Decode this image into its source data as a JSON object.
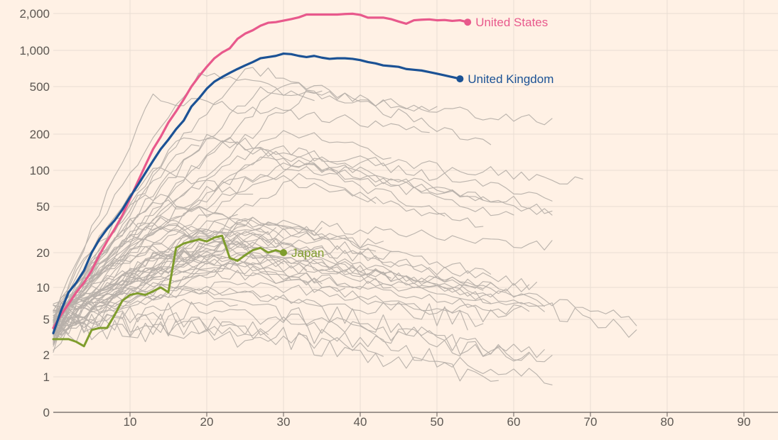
{
  "chart_data": {
    "type": "line",
    "y_scale": "log",
    "x_ticks": [
      10,
      20,
      30,
      40,
      50,
      60,
      70,
      80,
      90
    ],
    "y_ticks": [
      {
        "value": 2000,
        "label": "2,000"
      },
      {
        "value": 1000,
        "label": "1,000"
      },
      {
        "value": 500,
        "label": "500"
      },
      {
        "value": 200,
        "label": "200"
      },
      {
        "value": 100,
        "label": "100"
      },
      {
        "value": 50,
        "label": "50"
      },
      {
        "value": 20,
        "label": "20"
      },
      {
        "value": 10,
        "label": "10"
      },
      {
        "value": 5,
        "label": "5"
      },
      {
        "value": 2,
        "label": "2"
      },
      {
        "value": 1,
        "label": "1"
      },
      {
        "value": 0,
        "label": "0"
      }
    ],
    "xlim": [
      0,
      95
    ],
    "grid": "vertical and horizontal",
    "colors": {
      "background": "#fff1e5",
      "grid": "#e9ddd2",
      "axis": "#66605c",
      "tick_text": "#5c5752",
      "context": "#b7b0aa",
      "us": "#e8598c",
      "uk": "#1b5295",
      "japan": "#7f9d2d"
    },
    "highlighted": [
      {
        "name": "United States",
        "color": "#e8598c",
        "x": [
          0,
          1,
          2,
          3,
          4,
          5,
          6,
          7,
          8,
          9,
          10,
          11,
          12,
          13,
          14,
          15,
          16,
          17,
          18,
          19,
          20,
          21,
          22,
          23,
          24,
          25,
          26,
          27,
          28,
          29,
          30,
          31,
          32,
          33,
          34,
          35,
          36,
          37,
          38,
          39,
          40,
          41,
          42,
          43,
          44,
          45,
          46,
          47,
          48,
          49,
          50,
          51,
          52,
          53,
          54
        ],
        "y": [
          4,
          5.5,
          7,
          9,
          11,
          14,
          19,
          25,
          32,
          42,
          58,
          80,
          110,
          150,
          190,
          250,
          310,
          390,
          500,
          610,
          730,
          860,
          960,
          1040,
          1240,
          1370,
          1460,
          1590,
          1680,
          1700,
          1750,
          1800,
          1860,
          1960,
          1960,
          1960,
          1960,
          1960,
          1980,
          1990,
          1950,
          1850,
          1850,
          1850,
          1800,
          1720,
          1650,
          1760,
          1780,
          1790,
          1760,
          1770,
          1740,
          1760,
          1700
        ]
      },
      {
        "name": "United Kingdom",
        "color": "#1b5295",
        "x": [
          0,
          1,
          2,
          3,
          4,
          5,
          6,
          7,
          8,
          9,
          10,
          11,
          12,
          13,
          14,
          15,
          16,
          17,
          18,
          19,
          20,
          21,
          22,
          23,
          24,
          25,
          26,
          27,
          28,
          29,
          30,
          31,
          32,
          33,
          34,
          35,
          36,
          37,
          38,
          39,
          40,
          41,
          42,
          43,
          44,
          45,
          46,
          47,
          48,
          49,
          50,
          51,
          52,
          53
        ],
        "y": [
          3.5,
          6,
          9,
          11,
          14,
          20,
          26,
          32,
          38,
          47,
          60,
          75,
          95,
          120,
          150,
          180,
          220,
          260,
          340,
          400,
          480,
          550,
          600,
          650,
          700,
          750,
          800,
          860,
          880,
          900,
          940,
          930,
          900,
          880,
          900,
          870,
          850,
          860,
          860,
          850,
          830,
          800,
          780,
          750,
          740,
          730,
          700,
          690,
          680,
          660,
          640,
          620,
          600,
          580
        ]
      },
      {
        "name": "Japan",
        "color": "#7f9d2d",
        "x": [
          0,
          1,
          2,
          3,
          4,
          5,
          6,
          7,
          8,
          9,
          10,
          11,
          12,
          13,
          14,
          15,
          16,
          17,
          18,
          19,
          20,
          21,
          22,
          23,
          24,
          25,
          26,
          27,
          28,
          29,
          30
        ],
        "y": [
          3,
          3,
          3,
          2.8,
          2.5,
          3.8,
          4,
          4,
          5.5,
          7.5,
          8.5,
          8.8,
          8.5,
          9.2,
          10,
          9,
          22,
          24,
          25,
          26,
          25,
          27,
          28,
          18,
          17,
          19,
          21,
          22,
          20,
          21,
          20
        ]
      }
    ]
  }
}
